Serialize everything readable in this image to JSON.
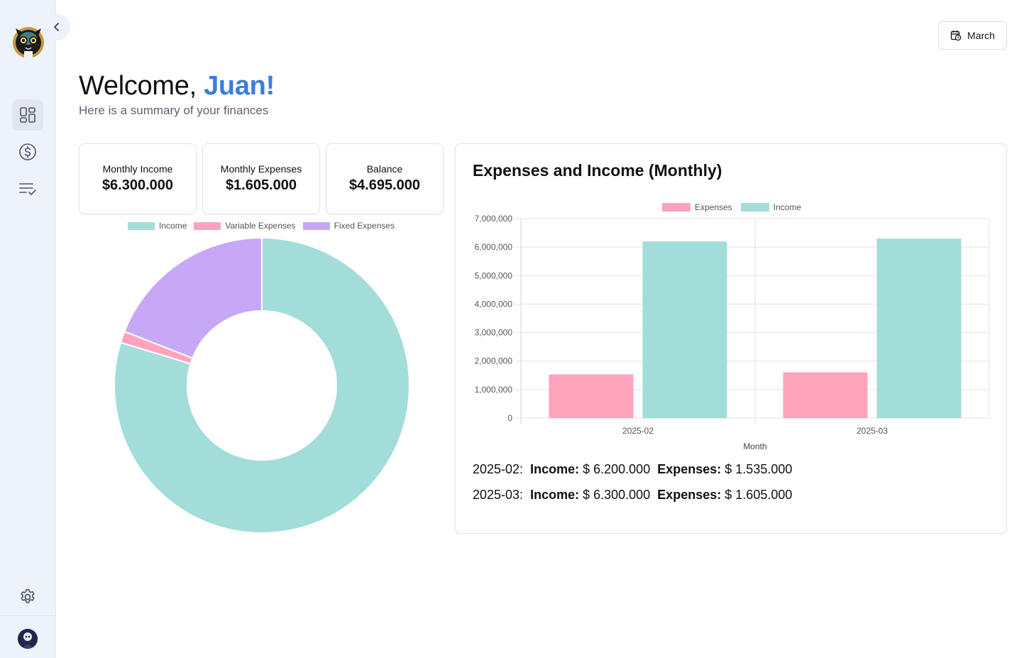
{
  "user": {
    "welcome_prefix": "Welcome, ",
    "name": "Juan!",
    "subtitle": "Here is a summary of your finances"
  },
  "month_selector": {
    "label": "March"
  },
  "cards": [
    {
      "label": "Monthly Income",
      "value": "$6.300.000"
    },
    {
      "label": "Monthly Expenses",
      "value": "$1.605.000"
    },
    {
      "label": "Balance",
      "value": "$4.695.000"
    }
  ],
  "colors": {
    "income": "#a3ddda",
    "expenses": "#fea3bc",
    "fixed": "#c6a8f6",
    "accent": "#3b7ddd"
  },
  "chart_data": [
    {
      "type": "pie",
      "variant": "doughnut",
      "labels": [
        "Income",
        "Variable Expenses",
        "Fixed Expenses"
      ],
      "values": [
        6300000,
        100000,
        1505000
      ],
      "legend": "top"
    },
    {
      "type": "bar",
      "title": "Expenses and Income (Monthly)",
      "categories": [
        "2025-02",
        "2025-03"
      ],
      "series": [
        {
          "name": "Expenses",
          "values": [
            1535000,
            1605000
          ]
        },
        {
          "name": "Income",
          "values": [
            6200000,
            6300000
          ]
        }
      ],
      "xlabel": "Month",
      "ylabel": "",
      "ylim": [
        0,
        7000000
      ],
      "yticks": [
        "7,000,000",
        "6,000,000",
        "5,000,000",
        "4,000,000",
        "3,000,000",
        "2,000,000",
        "1,000,000",
        "0"
      ],
      "legend": "top"
    }
  ],
  "summary": [
    {
      "month": "2025-02:",
      "income_label": "Income:",
      "income_value": "$ 6.200.000",
      "expenses_label": "Expenses:",
      "expenses_value": "$ 1.535.000"
    },
    {
      "month": "2025-03:",
      "income_label": "Income:",
      "income_value": "$ 6.300.000",
      "expenses_label": "Expenses:",
      "expenses_value": "$ 1.605.000"
    }
  ]
}
